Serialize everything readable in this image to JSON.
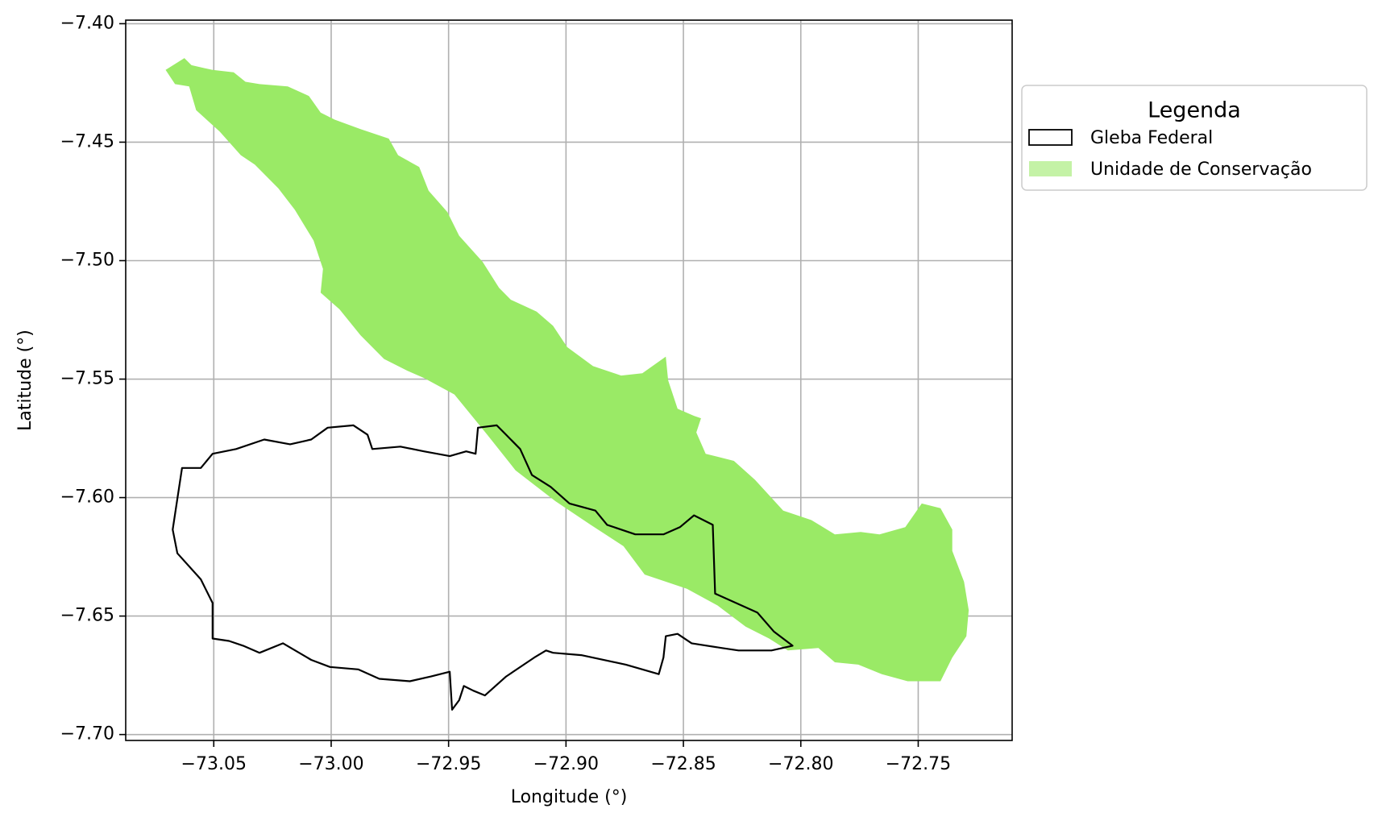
{
  "chart_data": {
    "type": "map",
    "xlabel": "Longitude (°)",
    "ylabel": "Latitude (°)",
    "xlim": [
      -73.0875,
      -72.71
    ],
    "ylim": [
      -7.7025,
      -7.3985
    ],
    "grid": true,
    "x_ticks": [
      -73.05,
      -73.0,
      -72.95,
      -72.9,
      -72.85,
      -72.8,
      -72.75
    ],
    "x_tick_labels": [
      "−73.05",
      "−73.00",
      "−72.95",
      "−72.90",
      "−72.85",
      "−72.80",
      "−72.75"
    ],
    "y_ticks": [
      -7.4,
      -7.45,
      -7.5,
      -7.55,
      -7.6,
      -7.65,
      -7.7
    ],
    "y_tick_labels": [
      "−7.40",
      "−7.45",
      "−7.50",
      "−7.55",
      "−7.60",
      "−7.65",
      "−7.70"
    ],
    "legend": {
      "title": "Legenda",
      "placement": "outside-upper-right",
      "entries": [
        {
          "label": "Gleba Federal",
          "style": "outline",
          "color": "#000000"
        },
        {
          "label": "Unidade de Conservação",
          "style": "fill",
          "color": "#c4f2a6"
        }
      ]
    },
    "series": [
      {
        "name": "Unidade de Conservação",
        "kind": "polygon",
        "fill": "#9aea66",
        "coords": [
          [
            -73.0705,
            -7.4195
          ],
          [
            -73.0625,
            -7.4145
          ],
          [
            -73.0595,
            -7.4175
          ],
          [
            -73.0505,
            -7.4195
          ],
          [
            -73.0415,
            -7.4205
          ],
          [
            -73.0365,
            -7.4245
          ],
          [
            -73.0305,
            -7.4255
          ],
          [
            -73.0185,
            -7.4265
          ],
          [
            -73.0095,
            -7.4305
          ],
          [
            -73.0045,
            -7.4375
          ],
          [
            -72.9985,
            -7.4405
          ],
          [
            -72.9875,
            -7.4445
          ],
          [
            -72.9755,
            -7.4485
          ],
          [
            -72.9715,
            -7.4555
          ],
          [
            -72.9625,
            -7.4605
          ],
          [
            -72.9585,
            -7.4705
          ],
          [
            -72.9505,
            -7.4795
          ],
          [
            -72.9455,
            -7.4895
          ],
          [
            -72.9355,
            -7.5005
          ],
          [
            -72.9285,
            -7.5115
          ],
          [
            -72.9235,
            -7.5165
          ],
          [
            -72.9125,
            -7.5215
          ],
          [
            -72.9055,
            -7.5275
          ],
          [
            -72.8995,
            -7.5365
          ],
          [
            -72.8885,
            -7.5445
          ],
          [
            -72.8765,
            -7.5485
          ],
          [
            -72.8675,
            -7.5475
          ],
          [
            -72.8575,
            -7.5405
          ],
          [
            -72.8565,
            -7.5505
          ],
          [
            -72.8525,
            -7.5625
          ],
          [
            -72.8455,
            -7.5655
          ],
          [
            -72.8425,
            -7.5665
          ],
          [
            -72.8445,
            -7.5725
          ],
          [
            -72.8405,
            -7.5815
          ],
          [
            -72.8285,
            -7.5845
          ],
          [
            -72.8195,
            -7.5925
          ],
          [
            -72.8075,
            -7.6055
          ],
          [
            -72.7955,
            -7.6095
          ],
          [
            -72.7855,
            -7.6155
          ],
          [
            -72.7745,
            -7.6145
          ],
          [
            -72.7665,
            -7.6155
          ],
          [
            -72.7555,
            -7.6125
          ],
          [
            -72.7485,
            -7.6025
          ],
          [
            -72.7405,
            -7.6045
          ],
          [
            -72.7355,
            -7.6135
          ],
          [
            -72.7355,
            -7.6225
          ],
          [
            -72.7305,
            -7.6355
          ],
          [
            -72.7285,
            -7.6475
          ],
          [
            -72.7295,
            -7.6585
          ],
          [
            -72.7355,
            -7.6675
          ],
          [
            -72.7405,
            -7.6775
          ],
          [
            -72.7545,
            -7.6775
          ],
          [
            -72.7655,
            -7.6745
          ],
          [
            -72.7755,
            -7.6705
          ],
          [
            -72.7855,
            -7.6695
          ],
          [
            -72.7925,
            -7.6635
          ],
          [
            -72.8055,
            -7.6645
          ],
          [
            -72.8135,
            -7.6595
          ],
          [
            -72.8235,
            -7.6545
          ],
          [
            -72.8355,
            -7.6455
          ],
          [
            -72.8485,
            -7.6385
          ],
          [
            -72.8665,
            -7.6325
          ],
          [
            -72.8755,
            -7.6205
          ],
          [
            -72.8895,
            -7.6115
          ],
          [
            -72.9045,
            -7.6015
          ],
          [
            -72.9215,
            -7.5885
          ],
          [
            -72.9335,
            -7.5735
          ],
          [
            -72.9475,
            -7.5565
          ],
          [
            -72.9605,
            -7.5495
          ],
          [
            -72.9675,
            -7.5465
          ],
          [
            -72.9775,
            -7.5415
          ],
          [
            -72.9875,
            -7.5315
          ],
          [
            -72.9965,
            -7.5205
          ],
          [
            -73.0045,
            -7.5135
          ],
          [
            -73.0035,
            -7.5035
          ],
          [
            -73.0075,
            -7.4915
          ],
          [
            -73.0155,
            -7.4785
          ],
          [
            -73.0225,
            -7.4695
          ],
          [
            -73.0325,
            -7.4595
          ],
          [
            -73.0385,
            -7.4555
          ],
          [
            -73.0475,
            -7.4455
          ],
          [
            -73.0575,
            -7.4365
          ],
          [
            -73.0605,
            -7.4265
          ],
          [
            -73.0665,
            -7.4255
          ],
          [
            -73.0705,
            -7.4195
          ]
        ]
      },
      {
        "name": "Gleba Federal",
        "kind": "outline",
        "stroke": "#000000",
        "coords": [
          [
            -73.0635,
            -7.5875
          ],
          [
            -73.0555,
            -7.5875
          ],
          [
            -73.0505,
            -7.5815
          ],
          [
            -73.0405,
            -7.5795
          ],
          [
            -73.0285,
            -7.5755
          ],
          [
            -73.0175,
            -7.5775
          ],
          [
            -73.0085,
            -7.5755
          ],
          [
            -73.0015,
            -7.5705
          ],
          [
            -72.9905,
            -7.5695
          ],
          [
            -72.9845,
            -7.5735
          ],
          [
            -72.9825,
            -7.5795
          ],
          [
            -72.9705,
            -7.5785
          ],
          [
            -72.9605,
            -7.5805
          ],
          [
            -72.9495,
            -7.5825
          ],
          [
            -72.9425,
            -7.5805
          ],
          [
            -72.9385,
            -7.5815
          ],
          [
            -72.9375,
            -7.5705
          ],
          [
            -72.9295,
            -7.5695
          ],
          [
            -72.9255,
            -7.5735
          ],
          [
            -72.9195,
            -7.5795
          ],
          [
            -72.9145,
            -7.5905
          ],
          [
            -72.9065,
            -7.5955
          ],
          [
            -72.8985,
            -7.6025
          ],
          [
            -72.8875,
            -7.6055
          ],
          [
            -72.8825,
            -7.6115
          ],
          [
            -72.8705,
            -7.6155
          ],
          [
            -72.8585,
            -7.6155
          ],
          [
            -72.8515,
            -7.6125
          ],
          [
            -72.8455,
            -7.6075
          ],
          [
            -72.8375,
            -7.6115
          ],
          [
            -72.8365,
            -7.6405
          ],
          [
            -72.8185,
            -7.6485
          ],
          [
            -72.8115,
            -7.6565
          ],
          [
            -72.8035,
            -7.6625
          ],
          [
            -72.8125,
            -7.6645
          ],
          [
            -72.8265,
            -7.6645
          ],
          [
            -72.8335,
            -7.6635
          ],
          [
            -72.8465,
            -7.6615
          ],
          [
            -72.8525,
            -7.6575
          ],
          [
            -72.8575,
            -7.6585
          ],
          [
            -72.8585,
            -7.6675
          ],
          [
            -72.8605,
            -7.6745
          ],
          [
            -72.8745,
            -7.6705
          ],
          [
            -72.8935,
            -7.6665
          ],
          [
            -72.9055,
            -7.6655
          ],
          [
            -72.9085,
            -7.6645
          ],
          [
            -72.9135,
            -7.6675
          ],
          [
            -72.9255,
            -7.6755
          ],
          [
            -72.9345,
            -7.6835
          ],
          [
            -72.9395,
            -7.6815
          ],
          [
            -72.9435,
            -7.6795
          ],
          [
            -72.9455,
            -7.6855
          ],
          [
            -72.9485,
            -7.6895
          ],
          [
            -72.9495,
            -7.6735
          ],
          [
            -72.9575,
            -7.6755
          ],
          [
            -72.9665,
            -7.6775
          ],
          [
            -72.9795,
            -7.6765
          ],
          [
            -72.9885,
            -7.6725
          ],
          [
            -73.0005,
            -7.6715
          ],
          [
            -73.0085,
            -7.6685
          ],
          [
            -73.0205,
            -7.6615
          ],
          [
            -73.0305,
            -7.6655
          ],
          [
            -73.0375,
            -7.6625
          ],
          [
            -73.0435,
            -7.6605
          ],
          [
            -73.0505,
            -7.6595
          ],
          [
            -73.0505,
            -7.6445
          ],
          [
            -73.0555,
            -7.6345
          ],
          [
            -73.0655,
            -7.6235
          ],
          [
            -73.0675,
            -7.6135
          ],
          [
            -73.0655,
            -7.6005
          ],
          [
            -73.0635,
            -7.5875
          ]
        ]
      }
    ]
  }
}
